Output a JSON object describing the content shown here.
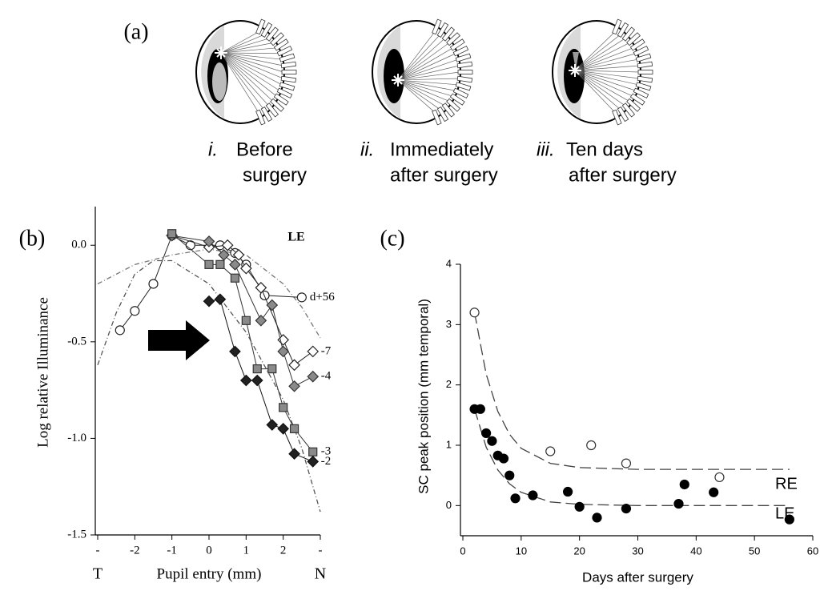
{
  "panel_a": {
    "label": "(a)",
    "captions": [
      {
        "numeral": "i.",
        "lines": [
          "Before",
          "surgery"
        ]
      },
      {
        "numeral": "ii.",
        "lines": [
          "Immediately",
          "after surgery"
        ]
      },
      {
        "numeral": "iii.",
        "lines": [
          "Ten days",
          "after surgery"
        ]
      }
    ]
  },
  "chart_data": [
    {
      "type": "line",
      "panel_label": "(b)",
      "annotation": "LE",
      "xlabel": "Pupil entry (mm)",
      "ylabel": "Log relative Illuminance",
      "axis_ends": [
        "T",
        "N"
      ],
      "xlim": [
        -3,
        3
      ],
      "ylim": [
        -1.5,
        0.2
      ],
      "xticks": [
        {
          "value": -3,
          "label": "-"
        },
        -2,
        -1,
        0,
        1,
        2,
        {
          "value": 3,
          "label": "-"
        }
      ],
      "yticks": [
        {
          "value": 0,
          "label": "0.0"
        },
        -0.5,
        {
          "value": -1,
          "label": "-1.0"
        },
        -1.5
      ],
      "series": [
        {
          "style": "dashdot",
          "color": "#555",
          "x": [
            -3,
            -2.5,
            -2,
            -1.5,
            -1,
            0,
            1,
            2,
            2.5,
            3
          ],
          "values": [
            -0.62,
            -0.35,
            -0.15,
            -0.08,
            -0.08,
            -0.2,
            -0.45,
            -0.8,
            -1.05,
            -1.38
          ]
        },
        {
          "style": "dashdot",
          "color": "#777",
          "x": [
            -3,
            -2,
            -1,
            0,
            1,
            2,
            2.5,
            3
          ],
          "values": [
            -0.2,
            -0.1,
            -0.05,
            -0.02,
            -0.05,
            -0.2,
            -0.32,
            -0.48
          ]
        },
        {
          "name": "d+56",
          "marker": "circle",
          "color": "#222",
          "fill": "#fff",
          "x": [
            -2.4,
            -2.0,
            -1.5,
            -1.0,
            -0.5,
            0.3,
            0.7,
            1.0,
            1.5,
            2.5
          ],
          "values": [
            -0.44,
            -0.34,
            -0.2,
            0.05,
            0.0,
            0.0,
            -0.04,
            -0.1,
            -0.26,
            -0.27
          ]
        },
        {
          "name": "-7",
          "marker": "diamond",
          "color": "#222",
          "fill": "#fff",
          "x": [
            -1,
            0,
            0.5,
            0.8,
            1,
            1.4,
            2,
            2.3,
            2.8
          ],
          "values": [
            0.05,
            -0.01,
            0,
            -0.05,
            -0.12,
            -0.22,
            -0.49,
            -0.62,
            -0.55
          ]
        },
        {
          "name": "-4",
          "marker": "diamond",
          "color": "#333",
          "fill": "#8a8a8a",
          "x": [
            -1,
            0,
            0.4,
            0.7,
            1.4,
            1.7,
            2,
            2.3,
            2.8
          ],
          "values": [
            0.05,
            0.02,
            -0.05,
            -0.1,
            -0.39,
            -0.31,
            -0.55,
            -0.73,
            -0.68
          ]
        },
        {
          "name": "-3",
          "marker": "square",
          "color": "#333",
          "fill": "#8a8a8a",
          "x": [
            -1,
            0,
            0.3,
            0.7,
            1,
            1.3,
            1.7,
            2,
            2.3,
            2.8
          ],
          "values": [
            0.06,
            -0.1,
            -0.1,
            -0.17,
            -0.39,
            -0.64,
            -0.64,
            -0.84,
            -0.95,
            -1.07
          ]
        },
        {
          "name": "-2",
          "marker": "diamond",
          "color": "#111",
          "fill": "#222",
          "x": [
            0,
            0.3,
            0.7,
            1,
            1.3,
            1.7,
            2,
            2.3,
            2.8
          ],
          "values": [
            -0.29,
            -0.28,
            -0.55,
            -0.7,
            -0.7,
            -0.93,
            -0.95,
            -1.08,
            -1.12
          ]
        }
      ]
    },
    {
      "type": "scatter",
      "panel_label": "(c)",
      "xlabel": "Days after surgery",
      "ylabel": "SC peak position (mm temporal)",
      "xlim": [
        0,
        60
      ],
      "ylim": [
        -0.5,
        4
      ],
      "xticks": [
        0,
        10,
        20,
        30,
        40,
        50,
        60
      ],
      "yticks": [
        4,
        3,
        2,
        1,
        0
      ],
      "series": [
        {
          "style": "dashed",
          "color": "#444",
          "x": [
            2,
            4,
            6,
            8,
            10,
            15,
            20,
            30,
            40,
            50,
            56
          ],
          "values": [
            3.2,
            2.18,
            1.56,
            1.18,
            0.95,
            0.7,
            0.63,
            0.6,
            0.6,
            0.6,
            0.6
          ]
        },
        {
          "style": "dashed",
          "color": "#444",
          "x": [
            2,
            4,
            6,
            8,
            10,
            15,
            20,
            30,
            40,
            50,
            56
          ],
          "values": [
            1.6,
            0.97,
            0.59,
            0.36,
            0.22,
            0.06,
            0.02,
            0,
            0,
            0,
            0
          ]
        },
        {
          "name": "RE",
          "marker": "circle",
          "color": "#333",
          "fill": "#fff",
          "x": [
            2,
            15,
            22,
            28,
            44
          ],
          "values": [
            3.2,
            0.9,
            1.0,
            0.7,
            0.47
          ]
        },
        {
          "name": "LE",
          "marker": "circle",
          "color": "#000",
          "fill": "#000",
          "x": [
            2,
            3,
            4,
            5,
            6,
            7,
            8,
            9,
            12,
            18,
            20,
            23,
            28,
            37,
            38,
            43,
            56
          ],
          "values": [
            1.6,
            1.6,
            1.2,
            1.07,
            0.83,
            0.78,
            0.5,
            0.12,
            0.17,
            0.23,
            -0.02,
            -0.2,
            -0.05,
            0.03,
            0.35,
            0.22,
            -0.23
          ]
        }
      ]
    }
  ]
}
